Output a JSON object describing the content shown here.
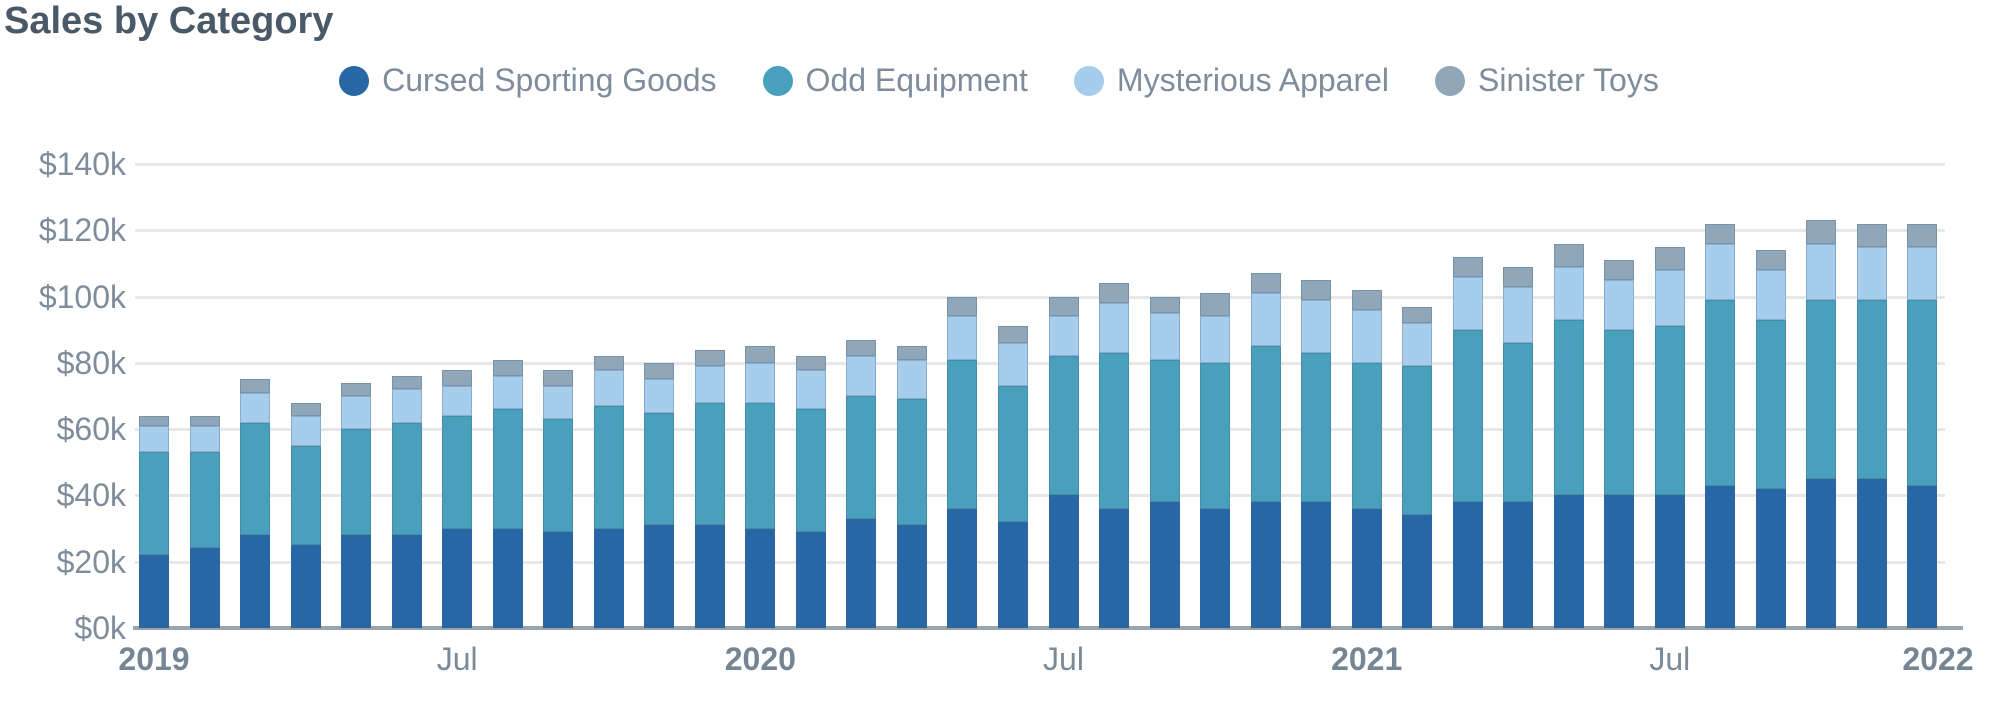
{
  "title": "Sales by Category",
  "legend": {
    "items": [
      {
        "label": "Cursed Sporting Goods",
        "color": "#2767a5"
      },
      {
        "label": "Odd Equipment",
        "color": "#48a0bc"
      },
      {
        "label": "Mysterious Apparel",
        "color": "#a7cdec"
      },
      {
        "label": "Sinister Toys",
        "color": "#90a7b9"
      }
    ]
  },
  "y_axis": {
    "tick_labels": [
      "$0k",
      "$20k",
      "$40k",
      "$60k",
      "$80k",
      "$100k",
      "$120k",
      "$140k"
    ],
    "tick_values": [
      0,
      20,
      40,
      60,
      80,
      100,
      120,
      140
    ]
  },
  "x_axis": {
    "ticks": [
      {
        "label": "2019",
        "bar_index": 0,
        "bold": true
      },
      {
        "label": "Jul",
        "bar_index": 6,
        "bold": false
      },
      {
        "label": "2020",
        "bar_index": 12,
        "bold": true
      },
      {
        "label": "Jul",
        "bar_index": 18,
        "bold": false
      },
      {
        "label": "2021",
        "bar_index": 24,
        "bold": true
      },
      {
        "label": "Jul",
        "bar_index": 30,
        "bold": false
      },
      {
        "label": "2022",
        "bar_index": 36,
        "bold": true
      }
    ]
  },
  "chart_data": {
    "type": "bar",
    "stacked": true,
    "title": "Sales by Category",
    "ylabel": "",
    "xlabel": "",
    "ylim": [
      0,
      140
    ],
    "y_unit": "$k",
    "grid": true,
    "legend_position": "top-center",
    "categories": [
      "Jan 2019",
      "Feb 2019",
      "Mar 2019",
      "Apr 2019",
      "May 2019",
      "Jun 2019",
      "Jul 2019",
      "Aug 2019",
      "Sep 2019",
      "Oct 2019",
      "Nov 2019",
      "Dec 2019",
      "Jan 2020",
      "Feb 2020",
      "Mar 2020",
      "Apr 2020",
      "May 2020",
      "Jun 2020",
      "Jul 2020",
      "Aug 2020",
      "Sep 2020",
      "Oct 2020",
      "Nov 2020",
      "Dec 2020",
      "Jan 2021",
      "Feb 2021",
      "Mar 2021",
      "Apr 2021",
      "May 2021",
      "Jun 2021",
      "Jul 2021",
      "Aug 2021",
      "Sep 2021",
      "Oct 2021",
      "Nov 2021",
      "Dec 2021"
    ],
    "series": [
      {
        "name": "Cursed Sporting Goods",
        "color": "#2767a5",
        "values": [
          22,
          24,
          28,
          25,
          28,
          28,
          30,
          30,
          29,
          30,
          31,
          31,
          30,
          29,
          33,
          31,
          36,
          32,
          40,
          36,
          38,
          36,
          38,
          38,
          36,
          34,
          38,
          38,
          40,
          40,
          40,
          43,
          42,
          45,
          45,
          43
        ]
      },
      {
        "name": "Odd Equipment",
        "color": "#48a0bc",
        "values": [
          31,
          29,
          34,
          30,
          32,
          34,
          34,
          36,
          34,
          37,
          34,
          37,
          38,
          37,
          37,
          38,
          45,
          41,
          42,
          47,
          43,
          44,
          47,
          45,
          44,
          45,
          52,
          48,
          53,
          50,
          51,
          56,
          51,
          54,
          54,
          56
        ]
      },
      {
        "name": "Mysterious Apparel",
        "color": "#a7cdec",
        "values": [
          8,
          8,
          9,
          9,
          10,
          10,
          9,
          10,
          10,
          11,
          10,
          11,
          12,
          12,
          12,
          12,
          13,
          13,
          12,
          15,
          14,
          14,
          16,
          16,
          16,
          13,
          16,
          17,
          16,
          15,
          17,
          17,
          15,
          17,
          16,
          16
        ]
      },
      {
        "name": "Sinister Toys",
        "color": "#90a7b9",
        "values": [
          3,
          3,
          4,
          4,
          4,
          4,
          5,
          5,
          5,
          4,
          5,
          5,
          5,
          4,
          5,
          4,
          6,
          5,
          6,
          6,
          5,
          7,
          6,
          6,
          6,
          5,
          6,
          6,
          7,
          6,
          7,
          6,
          6,
          7,
          7,
          7
        ]
      }
    ],
    "totals": [
      64,
      64,
      75,
      68,
      74,
      76,
      78,
      81,
      78,
      82,
      80,
      84,
      85,
      82,
      87,
      85,
      100,
      91,
      100,
      104,
      100,
      101,
      107,
      105,
      102,
      97,
      112,
      109,
      116,
      111,
      115,
      122,
      114,
      123,
      122,
      122
    ]
  }
}
